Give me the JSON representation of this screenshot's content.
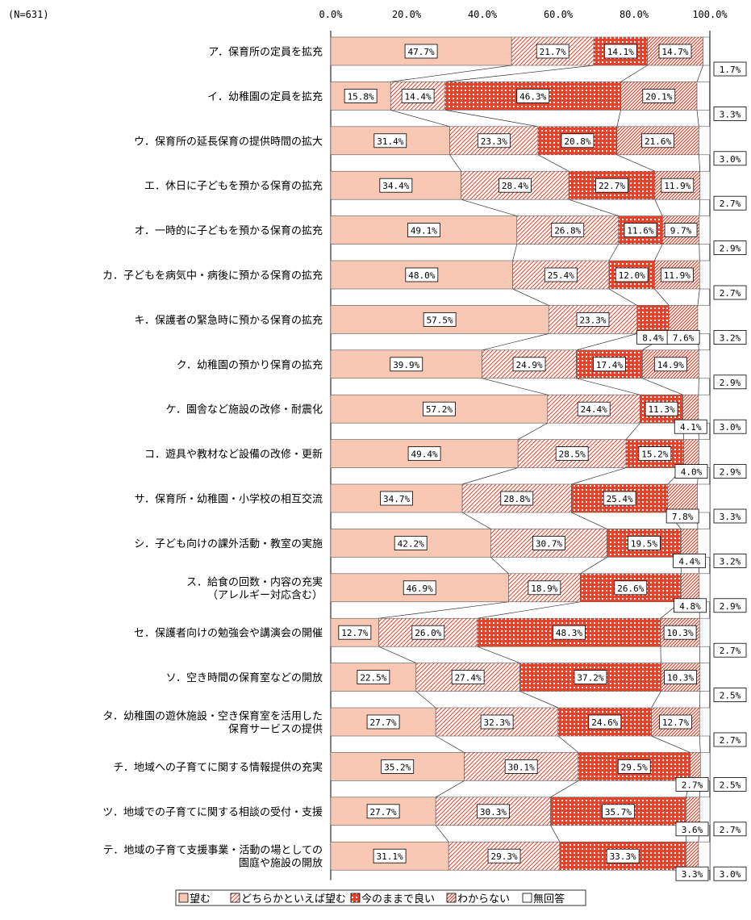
{
  "chart_data": {
    "type": "bar",
    "orientation": "horizontal",
    "stacked": true,
    "note": "(N=631)",
    "x_ticks": [
      "0.0%",
      "20.0%",
      "40.0%",
      "60.0%",
      "80.0%",
      "100.0%"
    ],
    "xlim": [
      0,
      100
    ],
    "legend_position": "bottom",
    "categories": [
      "ア．保育所の定員を拡充",
      "イ．幼稚園の定員を拡充",
      "ウ．保育所の延長保育の提供時間の拡大",
      "エ．休日に子どもを預かる保育の拡充",
      "オ．一時的に子どもを預かる保育の拡充",
      "カ．子どもを病気中・病後に預かる保育の拡充",
      "キ．保護者の緊急時に預かる保育の拡充",
      "ク．幼稚園の預かり保育の拡充",
      "ケ．園舎など施設の改修・耐震化",
      "コ．遊具や教材など設備の改修・更新",
      "サ．保育所・幼稚園・小学校の相互交流",
      "シ．子ども向けの課外活動・教室の実施",
      "ス．給食の回数・内容の充実\n（アレルギー対応含む）",
      "セ．保護者向けの勉強会や講演会の開催",
      "ソ．空き時間の保育室などの開放",
      "タ．幼稚園の遊休施設・空き保育室を活用した\n保育サービスの提供",
      "チ．地域への子育てに関する情報提供の充実",
      "ツ．地域での子育てに関する相談の受付・支援",
      "テ．地域の子育て支援事業・活動の場としての\n園庭や施設の開放"
    ],
    "series": [
      {
        "name": "望む",
        "color": "#f9c8b4",
        "pattern": "solid",
        "values": [
          47.7,
          15.8,
          31.4,
          34.4,
          49.1,
          48.0,
          57.5,
          39.9,
          57.2,
          49.4,
          34.7,
          42.2,
          46.9,
          12.7,
          22.5,
          27.7,
          35.2,
          27.7,
          31.1
        ]
      },
      {
        "name": "どちらかといえば望む",
        "color": "#e8432a",
        "pattern": "hatch",
        "values": [
          21.7,
          14.4,
          23.3,
          28.4,
          26.8,
          25.4,
          23.3,
          24.9,
          24.4,
          28.5,
          28.8,
          30.7,
          18.9,
          26.0,
          27.4,
          32.3,
          30.1,
          30.3,
          29.3
        ]
      },
      {
        "name": "今のままで良い",
        "color": "#e8432a",
        "pattern": "dots",
        "values": [
          14.1,
          46.3,
          20.8,
          22.7,
          11.6,
          12.0,
          8.4,
          17.4,
          11.3,
          15.2,
          25.4,
          19.5,
          26.6,
          48.3,
          37.2,
          24.6,
          29.5,
          35.7,
          33.3
        ]
      },
      {
        "name": "わからない",
        "color": "#e8432a",
        "pattern": "hatch-dense",
        "values": [
          14.7,
          20.1,
          21.6,
          11.9,
          9.7,
          11.9,
          7.6,
          14.9,
          4.1,
          4.0,
          7.8,
          4.4,
          4.8,
          10.3,
          10.3,
          12.7,
          2.7,
          3.6,
          3.3
        ]
      },
      {
        "name": "無回答",
        "color": "#ffffff",
        "pattern": "solid",
        "values": [
          1.7,
          3.3,
          3.0,
          2.7,
          2.9,
          2.7,
          3.2,
          2.9,
          3.0,
          2.9,
          3.3,
          3.2,
          2.9,
          2.7,
          2.5,
          2.7,
          2.5,
          2.7,
          3.0
        ]
      }
    ]
  }
}
